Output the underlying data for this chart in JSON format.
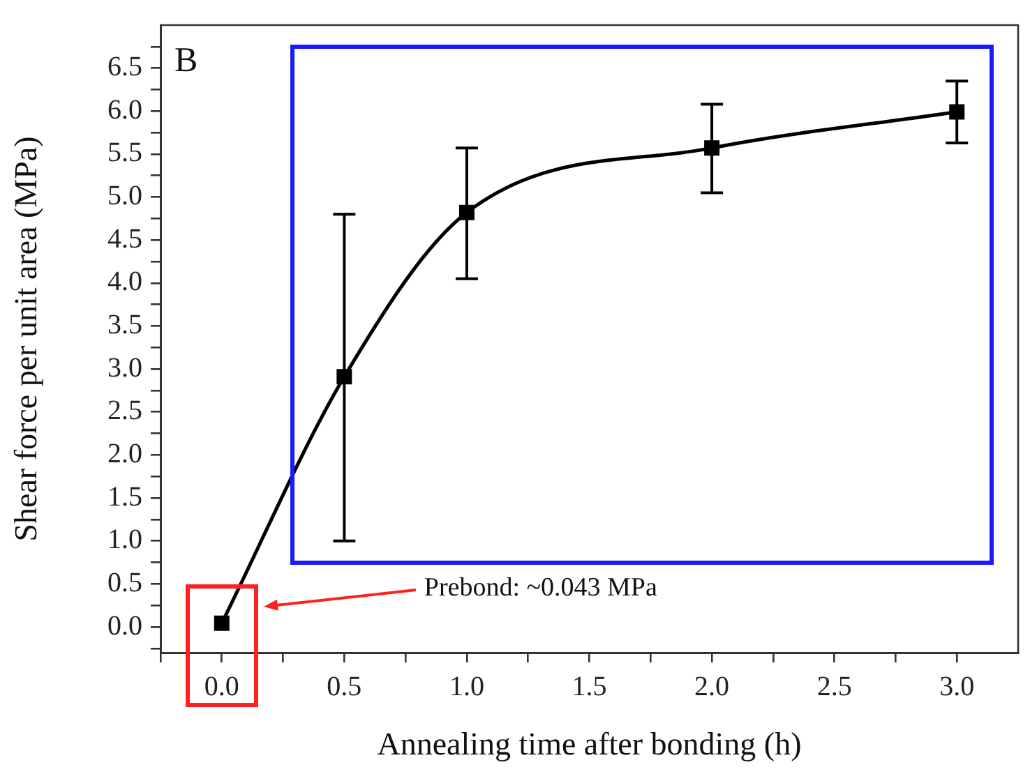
{
  "chart_data": {
    "type": "line",
    "xlabel": "Annealing time after bonding (h)",
    "ylabel": "Shear force per unit area (MPa)",
    "x": [
      0,
      0.5,
      1,
      2,
      3
    ],
    "series": [
      {
        "color": "#000000",
        "values": [
          0.043,
          2.91,
          4.82,
          5.57,
          5.99
        ],
        "errors": [
          null,
          [
            1.0,
            4.8
          ],
          [
            4.05,
            5.57
          ],
          [
            5.05,
            6.08
          ],
          [
            5.63,
            6.35
          ]
        ]
      }
    ],
    "xlim": [
      -0.25,
      3.25
    ],
    "xticks": [
      {
        "value": -0.25,
        "label": null
      },
      {
        "value": 0,
        "label": "0.0"
      },
      {
        "value": 0.25,
        "label": null
      },
      0.5,
      {
        "value": 0.75,
        "label": null
      },
      {
        "value": 1,
        "label": "1.0"
      },
      {
        "value": 1.25,
        "label": null
      },
      1.5,
      {
        "value": 1.75,
        "label": null
      },
      {
        "value": 2,
        "label": "2.0"
      },
      {
        "value": 2.25,
        "label": null
      },
      2.5,
      {
        "value": 2.75,
        "label": null
      },
      {
        "value": 3,
        "label": "3.0"
      }
    ],
    "ylim": [
      -0.3,
      7.0
    ],
    "yticks": [
      {
        "value": -0.25,
        "label": null
      },
      {
        "value": 0,
        "label": "0.0"
      },
      {
        "value": 0.25,
        "label": null
      },
      0.5,
      {
        "value": 0.75,
        "label": null
      },
      {
        "value": 1,
        "label": "1.0"
      },
      {
        "value": 1.25,
        "label": null
      },
      1.5,
      {
        "value": 1.75,
        "label": null
      },
      {
        "value": 2,
        "label": "2.0"
      },
      {
        "value": 2.25,
        "label": null
      },
      2.5,
      {
        "value": 2.75,
        "label": null
      },
      {
        "value": 3,
        "label": "3.0"
      },
      {
        "value": 3.25,
        "label": null
      },
      3.5,
      {
        "value": 3.75,
        "label": null
      },
      {
        "value": 4,
        "label": "4.0"
      },
      {
        "value": 4.25,
        "label": null
      },
      4.5,
      {
        "value": 4.75,
        "label": null
      },
      {
        "value": 5,
        "label": "5.0"
      },
      {
        "value": 5.25,
        "label": null
      },
      5.5,
      {
        "value": 5.75,
        "label": null
      },
      {
        "value": 6,
        "label": "6.0"
      },
      {
        "value": 6.25,
        "label": null
      },
      6.5,
      {
        "value": 6.75,
        "label": null
      }
    ],
    "grid": false,
    "legend": false,
    "marker": "square",
    "line_style": "solid",
    "annotations": [
      "B",
      "Prebond: ~0.043 MPa"
    ]
  }
}
